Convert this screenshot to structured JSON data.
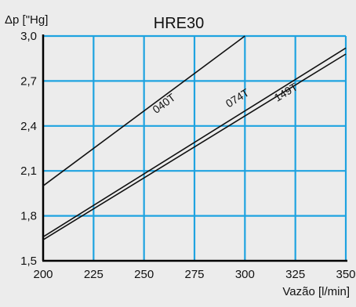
{
  "chart_data": {
    "type": "line",
    "title": "HRE30",
    "ylabel": "Δp [\"Hg]",
    "xlabel": "Vazão [l/min]",
    "xlim": [
      200,
      350
    ],
    "ylim": [
      1.5,
      3.0
    ],
    "x_ticks": [
      200,
      225,
      250,
      275,
      300,
      325,
      350
    ],
    "x_tick_labels": [
      "200",
      "225",
      "250",
      "275",
      "300",
      "325",
      "350"
    ],
    "y_ticks": [
      1.5,
      1.8,
      2.1,
      2.4,
      2.7,
      3.0
    ],
    "y_tick_labels": [
      "1,5",
      "1,8",
      "2,1",
      "2,4",
      "2,7",
      "3,0"
    ],
    "grid": true,
    "colors": {
      "background": "#ececec",
      "grid": "#1ea3e0",
      "line": "#111111",
      "text": "#111111"
    },
    "series": [
      {
        "name": "040T",
        "x": [
          200,
          300
        ],
        "y": [
          2.0,
          3.0
        ],
        "label_at": {
          "x": 256,
          "y": 2.48
        }
      },
      {
        "name": "074T",
        "x": [
          200,
          350
        ],
        "y": [
          1.66,
          2.92
        ],
        "label_at": {
          "x": 292,
          "y": 2.52
        }
      },
      {
        "name": "149T",
        "x": [
          200,
          350
        ],
        "y": [
          1.64,
          2.88
        ],
        "label_at": {
          "x": 316,
          "y": 2.56
        }
      }
    ]
  }
}
